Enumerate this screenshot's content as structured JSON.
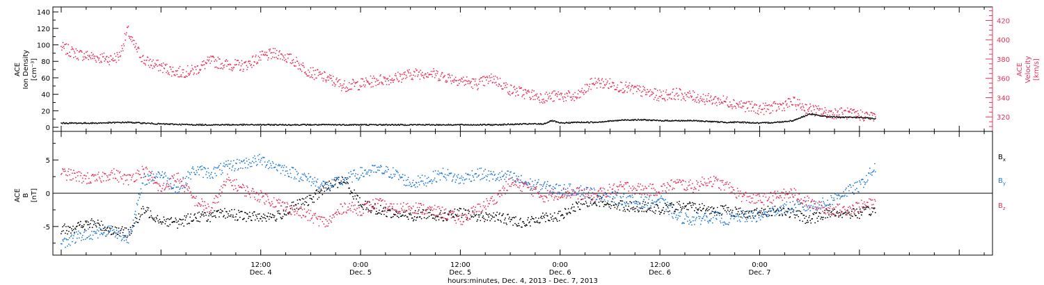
{
  "colors": {
    "density": "#e8325a",
    "velocity": "#e8325a",
    "bx": "#000000",
    "by": "#1f78d8",
    "bz": "#e8325a",
    "axis": "#000000"
  },
  "chart_data": [
    {
      "type": "scatter",
      "panel": "top",
      "ylabel_lines": [
        "ACE",
        "Ion Density",
        "[cm⁻³]"
      ],
      "ylabel_right_lines": [
        "ACE",
        "Velocity",
        "[km/s]"
      ],
      "ylim": [
        -5,
        146
      ],
      "yticks": [
        0,
        20,
        40,
        60,
        80,
        100,
        120,
        140
      ],
      "ylim_right": [
        305,
        434
      ],
      "yticks_right": [
        320,
        340,
        360,
        380,
        400,
        420
      ],
      "x_unit": "hours since 00:00 Dec. 4, 2013",
      "series": [
        {
          "axis": "right",
          "color": "density",
          "points": [
            [
              -12.0,
              392
            ],
            [
              -10.0,
              385
            ],
            [
              -8.0,
              382
            ],
            [
              -6.0,
              380
            ],
            [
              -5.0,
              383
            ],
            [
              -4.0,
              410
            ],
            [
              -3.5,
              398
            ],
            [
              -2.0,
              378
            ],
            [
              0.0,
              372
            ],
            [
              2.0,
              366
            ],
            [
              4.0,
              368
            ],
            [
              6.0,
              378
            ],
            [
              8.0,
              374
            ],
            [
              10.0,
              373
            ],
            [
              12.0,
              382
            ],
            [
              14.0,
              386
            ],
            [
              16.0,
              378
            ],
            [
              18.0,
              366
            ],
            [
              20.0,
              360
            ],
            [
              22.0,
              352
            ],
            [
              24.0,
              354
            ],
            [
              26.0,
              358
            ],
            [
              28.0,
              360
            ],
            [
              30.0,
              364
            ],
            [
              32.0,
              366
            ],
            [
              34.0,
              362
            ],
            [
              36.0,
              358
            ],
            [
              38.0,
              354
            ],
            [
              40.0,
              360
            ],
            [
              42.0,
              348
            ],
            [
              44.0,
              344
            ],
            [
              46.0,
              340
            ],
            [
              48.0,
              342
            ],
            [
              50.0,
              340
            ],
            [
              52.0,
              356
            ],
            [
              54.0,
              354
            ],
            [
              56.0,
              350
            ],
            [
              58.0,
              346
            ],
            [
              60.0,
              342
            ],
            [
              62.0,
              344
            ],
            [
              64.0,
              341
            ],
            [
              66.0,
              338
            ],
            [
              68.0,
              336
            ],
            [
              70.0,
              332
            ],
            [
              72.0,
              328
            ],
            [
              74.0,
              330
            ],
            [
              76.0,
              335
            ],
            [
              78.0,
              328
            ],
            [
              80.0,
              324
            ],
            [
              82.0,
              324
            ],
            [
              84.0,
              322
            ],
            [
              86.0,
              320
            ]
          ]
        },
        {
          "axis": "left",
          "color": "bx",
          "points": [
            [
              -12.0,
              5
            ],
            [
              -8.0,
              5
            ],
            [
              -4.0,
              6
            ],
            [
              0.0,
              4
            ],
            [
              4.0,
              3
            ],
            [
              8.0,
              3
            ],
            [
              12.0,
              3
            ],
            [
              16.0,
              3
            ],
            [
              20.0,
              3
            ],
            [
              24.0,
              3
            ],
            [
              28.0,
              3
            ],
            [
              32.0,
              3
            ],
            [
              36.0,
              3
            ],
            [
              40.0,
              3
            ],
            [
              44.0,
              4
            ],
            [
              46.0,
              4
            ],
            [
              47.0,
              8
            ],
            [
              48.0,
              5
            ],
            [
              50.0,
              6
            ],
            [
              52.0,
              6
            ],
            [
              56.0,
              9
            ],
            [
              58.0,
              9
            ],
            [
              60.0,
              8
            ],
            [
              64.0,
              8
            ],
            [
              66.0,
              7
            ],
            [
              68.0,
              6
            ],
            [
              70.0,
              6
            ],
            [
              72.0,
              5
            ],
            [
              74.0,
              6
            ],
            [
              76.0,
              8
            ],
            [
              78.0,
              16
            ],
            [
              80.0,
              13
            ],
            [
              82.0,
              12
            ],
            [
              84.0,
              12
            ],
            [
              86.0,
              10
            ]
          ]
        }
      ]
    },
    {
      "type": "scatter",
      "panel": "bottom",
      "ylabel_lines": [
        "ACE",
        "B",
        "[nT]"
      ],
      "ylim": [
        -9.3,
        9.3
      ],
      "yticks": [
        -5,
        0,
        5
      ],
      "legend": [
        "Bx",
        "By",
        "Bz"
      ],
      "legend_placement": "right",
      "x_unit": "hours since 00:00 Dec. 4, 2013",
      "series": [
        {
          "name": "Bx",
          "color": "bx",
          "points": [
            [
              -12.0,
              -5.5
            ],
            [
              -10.0,
              -5.0
            ],
            [
              -8.0,
              -4.5
            ],
            [
              -6.0,
              -5.5
            ],
            [
              -4.0,
              -6.0
            ],
            [
              -2.0,
              -2.5
            ],
            [
              0.0,
              -4.0
            ],
            [
              2.0,
              -4.5
            ],
            [
              4.0,
              -3.5
            ],
            [
              6.0,
              -3.5
            ],
            [
              8.0,
              -3.0
            ],
            [
              10.0,
              -3.5
            ],
            [
              12.0,
              -3.5
            ],
            [
              14.0,
              -3.5
            ],
            [
              16.0,
              -2.0
            ],
            [
              18.0,
              -1.0
            ],
            [
              20.0,
              1.0
            ],
            [
              22.0,
              2.0
            ],
            [
              24.0,
              -1.5
            ],
            [
              26.0,
              -2.5
            ],
            [
              28.0,
              -3.0
            ],
            [
              30.0,
              -3.5
            ],
            [
              32.0,
              -3.0
            ],
            [
              34.0,
              -3.5
            ],
            [
              36.0,
              -3.0
            ],
            [
              38.0,
              -3.5
            ],
            [
              40.0,
              -3.5
            ],
            [
              42.0,
              -4.0
            ],
            [
              44.0,
              -4.5
            ],
            [
              46.0,
              -3.5
            ],
            [
              48.0,
              -3.5
            ],
            [
              50.0,
              -2.0
            ],
            [
              52.0,
              -1.0
            ],
            [
              54.0,
              -1.5
            ],
            [
              56.0,
              -2.0
            ],
            [
              58.0,
              -2.0
            ],
            [
              60.0,
              -2.5
            ],
            [
              62.0,
              -2.0
            ],
            [
              64.0,
              -2.0
            ],
            [
              66.0,
              -2.5
            ],
            [
              68.0,
              -2.5
            ],
            [
              70.0,
              -3.0
            ],
            [
              72.0,
              -3.0
            ],
            [
              74.0,
              -2.5
            ],
            [
              76.0,
              -3.0
            ],
            [
              78.0,
              -4.0
            ],
            [
              80.0,
              -3.0
            ],
            [
              82.0,
              -3.0
            ],
            [
              84.0,
              -3.0
            ],
            [
              86.0,
              -2.5
            ]
          ]
        },
        {
          "name": "By",
          "color": "by",
          "points": [
            [
              -12.0,
              -7.5
            ],
            [
              -10.0,
              -6.5
            ],
            [
              -8.0,
              -6.0
            ],
            [
              -6.0,
              -5.5
            ],
            [
              -4.0,
              -7.0
            ],
            [
              -2.0,
              2.0
            ],
            [
              0.0,
              3.0
            ],
            [
              2.0,
              0.5
            ],
            [
              4.0,
              3.5
            ],
            [
              6.0,
              3.0
            ],
            [
              8.0,
              4.0
            ],
            [
              10.0,
              4.5
            ],
            [
              12.0,
              5.0
            ],
            [
              14.0,
              4.0
            ],
            [
              16.0,
              3.0
            ],
            [
              18.0,
              2.0
            ],
            [
              20.0,
              1.0
            ],
            [
              22.0,
              2.0
            ],
            [
              24.0,
              3.0
            ],
            [
              26.0,
              3.5
            ],
            [
              28.0,
              3.0
            ],
            [
              30.0,
              1.5
            ],
            [
              32.0,
              2.0
            ],
            [
              34.0,
              3.0
            ],
            [
              36.0,
              2.0
            ],
            [
              38.0,
              3.0
            ],
            [
              40.0,
              2.5
            ],
            [
              42.0,
              2.5
            ],
            [
              44.0,
              1.5
            ],
            [
              46.0,
              1.0
            ],
            [
              48.0,
              0.5
            ],
            [
              50.0,
              0.5
            ],
            [
              52.0,
              0.0
            ],
            [
              54.0,
              -0.5
            ],
            [
              56.0,
              -1.0
            ],
            [
              58.0,
              -1.5
            ],
            [
              60.0,
              -1.0
            ],
            [
              62.0,
              -3.5
            ],
            [
              64.0,
              -4.0
            ],
            [
              66.0,
              -3.5
            ],
            [
              68.0,
              -4.0
            ],
            [
              70.0,
              -3.5
            ],
            [
              72.0,
              -3.5
            ],
            [
              74.0,
              -2.5
            ],
            [
              76.0,
              -2.0
            ],
            [
              78.0,
              -2.0
            ],
            [
              80.0,
              -1.5
            ],
            [
              82.0,
              0.0
            ],
            [
              84.0,
              1.0
            ],
            [
              86.0,
              4.0
            ]
          ]
        },
        {
          "name": "Bz",
          "color": "bz",
          "points": [
            [
              -12.0,
              3.0
            ],
            [
              -10.0,
              2.5
            ],
            [
              -8.0,
              2.0
            ],
            [
              -6.0,
              3.0
            ],
            [
              -4.0,
              2.0
            ],
            [
              -2.0,
              3.5
            ],
            [
              0.0,
              0.5
            ],
            [
              2.0,
              2.5
            ],
            [
              4.0,
              -1.0
            ],
            [
              6.0,
              -2.5
            ],
            [
              8.0,
              2.0
            ],
            [
              10.0,
              0.5
            ],
            [
              12.0,
              -0.5
            ],
            [
              14.0,
              -1.5
            ],
            [
              16.0,
              -2.5
            ],
            [
              18.0,
              -3.5
            ],
            [
              20.0,
              -4.5
            ],
            [
              22.0,
              -2.0
            ],
            [
              24.0,
              -2.5
            ],
            [
              26.0,
              -1.5
            ],
            [
              28.0,
              -2.5
            ],
            [
              30.0,
              -2.0
            ],
            [
              32.0,
              -2.5
            ],
            [
              34.0,
              -3.0
            ],
            [
              36.0,
              -4.0
            ],
            [
              38.0,
              -2.5
            ],
            [
              40.0,
              -1.0
            ],
            [
              42.0,
              1.5
            ],
            [
              44.0,
              1.0
            ],
            [
              46.0,
              -0.5
            ],
            [
              48.0,
              0.0
            ],
            [
              50.0,
              0.0
            ],
            [
              52.0,
              -0.5
            ],
            [
              54.0,
              0.5
            ],
            [
              56.0,
              1.0
            ],
            [
              58.0,
              0.5
            ],
            [
              60.0,
              0.5
            ],
            [
              62.0,
              1.5
            ],
            [
              64.0,
              1.0
            ],
            [
              66.0,
              2.0
            ],
            [
              68.0,
              1.0
            ],
            [
              70.0,
              -0.5
            ],
            [
              72.0,
              -1.0
            ],
            [
              74.0,
              -0.5
            ],
            [
              76.0,
              0.0
            ],
            [
              78.0,
              -1.5
            ],
            [
              80.0,
              -2.5
            ],
            [
              82.0,
              -2.5
            ],
            [
              84.0,
              -2.0
            ],
            [
              86.0,
              -1.5
            ]
          ]
        }
      ]
    }
  ],
  "x_axis": {
    "xlim": [
      -13.0,
      100.0
    ],
    "ticks": [
      {
        "hour": 12,
        "time": "12:00",
        "date": "Dec. 4"
      },
      {
        "hour": 24,
        "time": "0:00",
        "date": "Dec. 5"
      },
      {
        "hour": 36,
        "time": "12:00",
        "date": "Dec. 5"
      },
      {
        "hour": 48,
        "time": "0:00",
        "date": "Dec. 6"
      },
      {
        "hour": 60,
        "time": "12:00",
        "date": "Dec. 6"
      },
      {
        "hour": 72,
        "time": "0:00",
        "date": "Dec. 7"
      }
    ],
    "minor_tick_hours": 3,
    "label": "hours:minutes, Dec.  4, 2013 - Dec.  7, 2013"
  },
  "legend_labels": {
    "bx": {
      "base": "B",
      "sub": "x"
    },
    "by": {
      "base": "B",
      "sub": "y"
    },
    "bz": {
      "base": "B",
      "sub": "z"
    }
  }
}
